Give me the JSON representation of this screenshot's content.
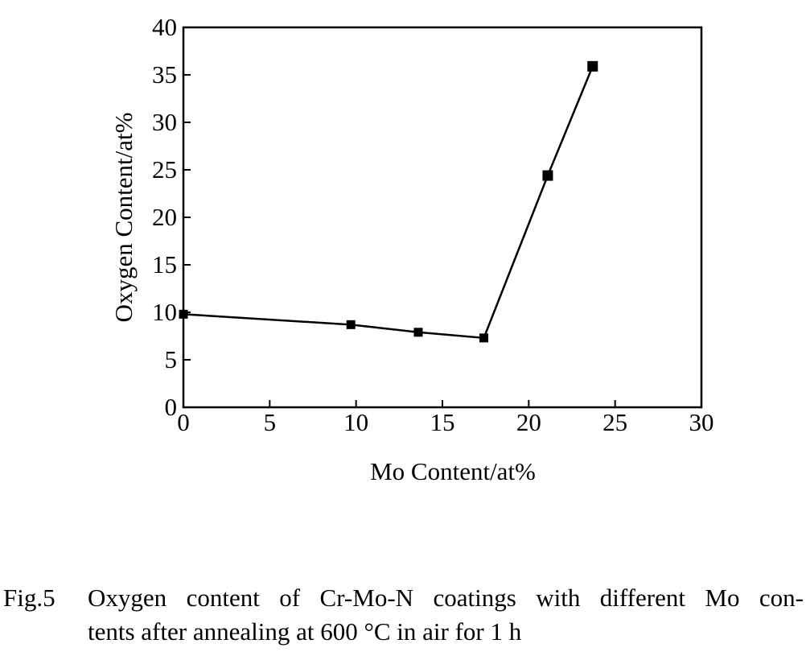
{
  "chart_data": {
    "type": "line",
    "title": "",
    "xlabel": "Mo Content/at%",
    "ylabel": "Oxygen Content/at%",
    "xlim": [
      0,
      30
    ],
    "ylim": [
      0,
      40
    ],
    "xticks": [
      0,
      5,
      10,
      15,
      20,
      25,
      30
    ],
    "yticks": [
      0,
      5,
      10,
      15,
      20,
      25,
      30,
      35,
      40
    ],
    "grid": false,
    "marker": "square",
    "series": [
      {
        "x": [
          0,
          9.7,
          13.6,
          17.4,
          21.1,
          23.7
        ],
        "y": [
          9.8,
          8.7,
          7.9,
          7.3,
          24.4,
          35.9
        ]
      }
    ]
  },
  "caption": {
    "label": "Fig.5",
    "line1": "Oxygen content of Cr-Mo-N coatings with different Mo con-",
    "line2": "tents after annealing at 600 °C in air for 1 h"
  }
}
